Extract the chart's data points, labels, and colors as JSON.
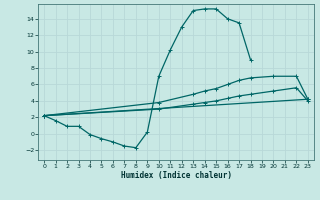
{
  "xlabel": "Humidex (Indice chaleur)",
  "background_color": "#c8e8e4",
  "grid_color": "#dde8e8",
  "line_color": "#006666",
  "xlim": [
    -0.5,
    23.5
  ],
  "ylim": [
    -3.2,
    15.8
  ],
  "xticks": [
    0,
    1,
    2,
    3,
    4,
    5,
    6,
    7,
    8,
    9,
    10,
    11,
    12,
    13,
    14,
    15,
    16,
    17,
    18,
    19,
    20,
    21,
    22,
    23
  ],
  "yticks": [
    -2,
    0,
    2,
    4,
    6,
    8,
    10,
    12,
    14
  ],
  "curve_x": [
    0,
    1,
    2,
    3,
    4,
    5,
    6,
    7,
    8,
    9,
    10,
    11,
    12,
    13,
    14,
    15,
    16,
    17,
    18
  ],
  "curve_y": [
    2.2,
    1.6,
    0.9,
    0.9,
    -0.1,
    -0.6,
    -1.0,
    -1.5,
    -1.7,
    0.2,
    7.0,
    10.2,
    13.0,
    15.0,
    15.2,
    15.2,
    14.0,
    13.5,
    9.0
  ],
  "line2_x": [
    0,
    10,
    13,
    14,
    15,
    16,
    17,
    18,
    20,
    22,
    23
  ],
  "line2_y": [
    2.2,
    3.8,
    4.8,
    5.2,
    5.5,
    6.0,
    6.5,
    6.8,
    7.0,
    7.0,
    4.2
  ],
  "line3_x": [
    0,
    23
  ],
  "line3_y": [
    2.2,
    4.2
  ],
  "line4_x": [
    0,
    10,
    13,
    14,
    15,
    16,
    17,
    18,
    20,
    22,
    23
  ],
  "line4_y": [
    2.2,
    3.0,
    3.6,
    3.8,
    4.0,
    4.3,
    4.6,
    4.8,
    5.2,
    5.6,
    4.0
  ]
}
